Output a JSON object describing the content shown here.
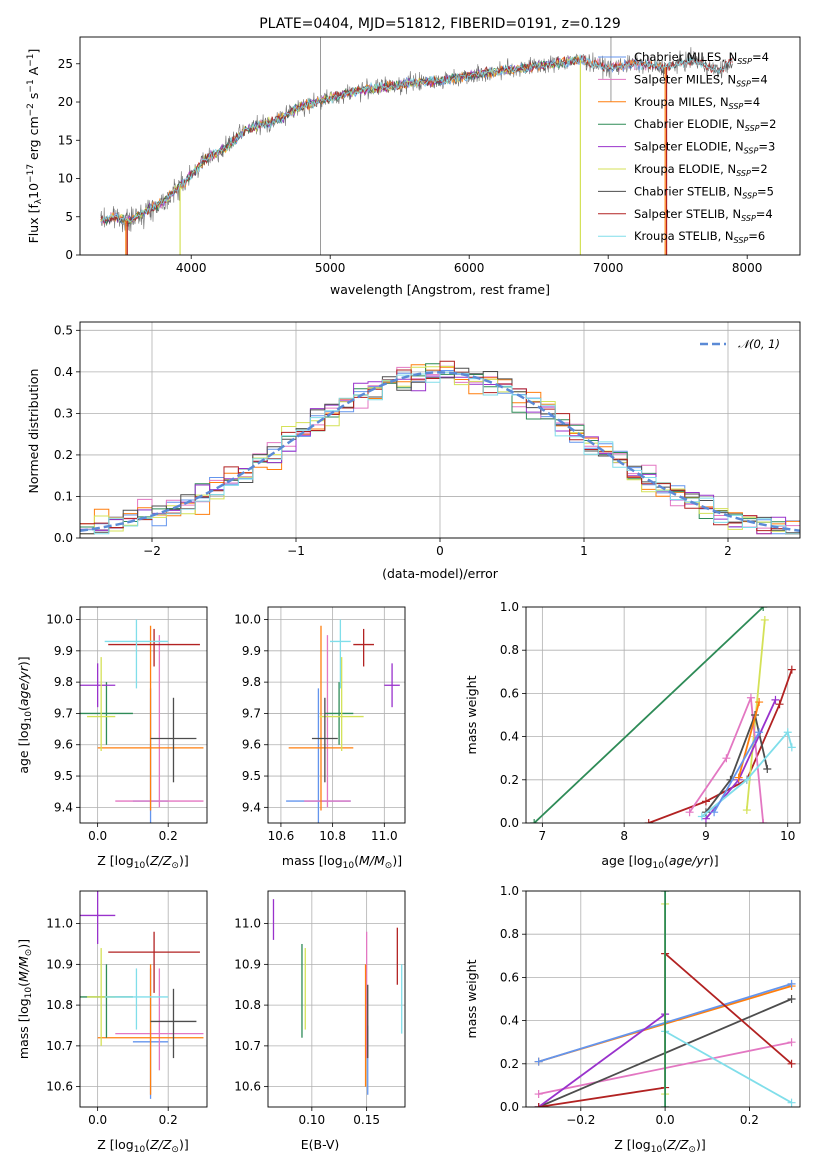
{
  "figure": {
    "title": "PLATE=0404, MJD=51812, FIBERID=0191, z=0.129"
  },
  "colors": {
    "Chabrier MILES": "#6495ed",
    "Salpeter MILES": "#e377c2",
    "Kroupa MILES": "#ff7f0e",
    "Chabrier ELODIE": "#2e8b57",
    "Salpeter ELODIE": "#9932cc",
    "Kroupa ELODIE": "#d4e157",
    "Chabrier STELIB": "#4d4d4d",
    "Salpeter STELIB": "#b22222",
    "Kroupa STELIB": "#80deea"
  },
  "chart_data": [
    {
      "id": "spectrum",
      "type": "line",
      "xlabel": "wavelength [Angstrom, rest frame]",
      "ylabel": "Flux [f_λ 10^-17 erg cm^-2 s^-1 A^-1]",
      "xlim": [
        3200,
        8380
      ],
      "ylim": [
        0,
        28.5
      ],
      "xticks": [
        4000,
        5000,
        6000,
        7000,
        8000
      ],
      "yticks": [
        0,
        5,
        10,
        15,
        20,
        25
      ],
      "grid": false,
      "legend_position": "right",
      "continuum": {
        "x": [
          3350,
          3450,
          3550,
          3650,
          3800,
          3950,
          4100,
          4250,
          4400,
          4600,
          4800,
          5000,
          5200,
          5400,
          5600,
          5800,
          6000,
          6200,
          6400,
          6600,
          6800,
          7000,
          7200,
          7400,
          7600,
          7800,
          7900
        ],
        "y": [
          4.5,
          5.0,
          4.4,
          5.5,
          7.0,
          9.5,
          12.5,
          14.0,
          16.5,
          17.5,
          19.5,
          20.5,
          21.5,
          22.0,
          22.5,
          22.8,
          23.5,
          24.0,
          24.5,
          25.0,
          25.5,
          24.5,
          25.0,
          24.5,
          25.5,
          24.0,
          25.5
        ]
      },
      "legend": [
        "Chabrier MILES, N_SSP=4",
        "Salpeter MILES, N_SSP=4",
        "Kroupa MILES, N_SSP=4",
        "Chabrier ELODIE, N_SSP=2",
        "Salpeter ELODIE, N_SSP=3",
        "Kroupa ELODIE, N_SSP=2",
        "Chabrier STELIB, N_SSP=5",
        "Salpeter STELIB, N_SSP=4",
        "Kroupa STELIB, N_SSP=6"
      ],
      "series": [
        {
          "name": "Chabrier MILES",
          "nssp": 4,
          "xrange": [
            3350,
            7400
          ]
        },
        {
          "name": "Salpeter MILES",
          "nssp": 4,
          "xrange": [
            3350,
            7400
          ]
        },
        {
          "name": "Kroupa MILES",
          "nssp": 4,
          "xrange": [
            3350,
            7400
          ]
        },
        {
          "name": "Chabrier ELODIE",
          "nssp": 2,
          "xrange": [
            3350,
            6800
          ]
        },
        {
          "name": "Salpeter ELODIE",
          "nssp": 3,
          "xrange": [
            3350,
            6800
          ]
        },
        {
          "name": "Kroupa ELODIE",
          "nssp": 2,
          "xrange": [
            3350,
            6800
          ]
        },
        {
          "name": "Chabrier STELIB",
          "nssp": 5,
          "xrange": [
            3350,
            7900
          ]
        },
        {
          "name": "Salpeter STELIB",
          "nssp": 4,
          "xrange": [
            3350,
            7900
          ]
        },
        {
          "name": "Kroupa STELIB",
          "nssp": 6,
          "xrange": [
            3350,
            7900
          ]
        }
      ]
    },
    {
      "id": "residuals",
      "type": "line",
      "xlabel": "(data-model)/error",
      "ylabel": "Normed distribution",
      "xlim": [
        -2.5,
        2.5
      ],
      "ylim": [
        0,
        0.52
      ],
      "xticks": [
        -2,
        -1,
        0,
        1,
        2
      ],
      "yticks": [
        0.0,
        0.1,
        0.2,
        0.3,
        0.4,
        0.5
      ],
      "grid": true,
      "legend_position": "top-right",
      "gaussian_label": "𝒩(0, 1)",
      "bin_width": 0.1
    },
    {
      "id": "age-vs-Z",
      "type": "scatter",
      "xlabel": "Z [log10(Z/Z_⊙)]",
      "ylabel": "age [log10(age/yr)]",
      "xlim": [
        -0.05,
        0.31
      ],
      "ylim": [
        9.35,
        10.04
      ],
      "xticks": [
        0.0,
        0.2
      ],
      "yticks": [
        9.4,
        9.5,
        9.6,
        9.7,
        9.8,
        9.9,
        10.0
      ]
    },
    {
      "id": "age-vs-mass",
      "type": "scatter",
      "xlabel": "mass [log10(M/M_⊙)]",
      "ylabel": "",
      "xlim": [
        10.55,
        11.08
      ],
      "ylim": [
        9.35,
        10.04
      ],
      "xticks": [
        10.6,
        10.8,
        11.0
      ],
      "yticks": [
        9.4,
        9.5,
        9.6,
        9.7,
        9.8,
        9.9,
        10.0
      ]
    },
    {
      "id": "mass-weight-vs-age",
      "type": "line",
      "xlabel": "age [log10(age/yr)]",
      "ylabel": "mass weight",
      "xlim": [
        6.8,
        10.15
      ],
      "ylim": [
        0,
        1.0
      ],
      "xticks": [
        7,
        8,
        9,
        10
      ],
      "yticks": [
        0.0,
        0.2,
        0.4,
        0.6,
        0.8,
        1.0
      ],
      "series": [
        {
          "name": "Chabrier ELODIE",
          "x": [
            6.9,
            9.7
          ],
          "y": [
            0.0,
            1.0
          ]
        },
        {
          "name": "Salpeter STELIB",
          "x": [
            8.3,
            9.0,
            9.5,
            9.9,
            10.05
          ],
          "y": [
            0.0,
            0.1,
            0.2,
            0.55,
            0.71
          ]
        },
        {
          "name": "Kroupa ELODIE",
          "x": [
            9.5,
            9.72
          ],
          "y": [
            0.06,
            0.94
          ]
        },
        {
          "name": "Salpeter MILES",
          "x": [
            8.8,
            9.25,
            9.55,
            9.7
          ],
          "y": [
            0.05,
            0.3,
            0.58,
            0.0
          ]
        },
        {
          "name": "Salpeter ELODIE",
          "x": [
            9.0,
            9.4,
            9.85
          ],
          "y": [
            0.02,
            0.2,
            0.57
          ]
        },
        {
          "name": "Chabrier STELIB",
          "x": [
            9.0,
            9.3,
            9.6,
            9.75
          ],
          "y": [
            0.05,
            0.2,
            0.5,
            0.25
          ]
        },
        {
          "name": "Kroupa STELIB",
          "x": [
            8.95,
            9.5,
            10.0,
            10.05
          ],
          "y": [
            0.03,
            0.2,
            0.42,
            0.35
          ]
        },
        {
          "name": "Kroupa MILES",
          "x": [
            9.4,
            9.65
          ],
          "y": [
            0.21,
            0.56
          ]
        },
        {
          "name": "Chabrier MILES",
          "x": [
            9.1,
            9.65
          ],
          "y": [
            0.05,
            0.42
          ]
        }
      ]
    },
    {
      "id": "mass-vs-Z",
      "type": "scatter",
      "xlabel": "Z [log10(Z/Z_⊙)]",
      "ylabel": "mass [log10(M/M_⊙)]",
      "xlim": [
        -0.05,
        0.31
      ],
      "ylim": [
        10.55,
        11.08
      ],
      "xticks": [
        0.0,
        0.2
      ],
      "yticks": [
        10.6,
        10.7,
        10.8,
        10.9,
        11.0
      ]
    },
    {
      "id": "mass-vs-EBV",
      "type": "scatter",
      "xlabel": "E(B-V)",
      "ylabel": "",
      "xlim": [
        0.06,
        0.185
      ],
      "ylim": [
        10.55,
        11.08
      ],
      "xticks": [
        0.1,
        0.15
      ],
      "yticks": [
        10.6,
        10.7,
        10.8,
        10.9,
        11.0
      ]
    },
    {
      "id": "mass-weight-vs-Z",
      "type": "line",
      "xlabel": "Z [log10(Z/Z_⊙)]",
      "ylabel": "mass weight",
      "xlim": [
        -0.33,
        0.32
      ],
      "ylim": [
        0,
        1.0
      ],
      "xticks": [
        -0.2,
        0.0,
        0.2
      ],
      "yticks": [
        0.0,
        0.2,
        0.4,
        0.6,
        0.8,
        1.0
      ],
      "series": [
        {
          "name": "Kroupa MILES",
          "x": [
            -0.3,
            0.3
          ],
          "y": [
            0.21,
            0.56
          ]
        },
        {
          "name": "Chabrier MILES",
          "x": [
            -0.3,
            0.3
          ],
          "y": [
            0.21,
            0.57
          ]
        },
        {
          "name": "Salpeter MILES",
          "x": [
            -0.3,
            0.3
          ],
          "y": [
            0.06,
            0.3
          ]
        },
        {
          "name": "Chabrier STELIB",
          "x": [
            -0.3,
            0.3
          ],
          "y": [
            0.0,
            0.5
          ]
        },
        {
          "name": "Salpeter ELODIE",
          "x": [
            -0.3,
            0.0
          ],
          "y": [
            0.0,
            0.43
          ]
        },
        {
          "name": "Salpeter STELIB",
          "x": [
            -0.3,
            0.0,
            0.0,
            0.3
          ],
          "y": [
            0.0,
            0.09,
            0.71,
            0.2
          ]
        },
        {
          "name": "Kroupa STELIB",
          "x": [
            0.0,
            0.3
          ],
          "y": [
            0.35,
            0.02
          ]
        },
        {
          "name": "Kroupa ELODIE",
          "x": [
            0.0,
            0.0
          ],
          "y": [
            0.06,
            0.94
          ]
        },
        {
          "name": "Chabrier ELODIE",
          "x": [
            0.0,
            0.0
          ],
          "y": [
            0.0,
            1.0
          ]
        }
      ]
    }
  ],
  "fits": [
    {
      "name": "Chabrier MILES",
      "Z": [
        0.1,
        0.2
      ],
      "age": [
        9.42,
        9.0,
        9.78
      ],
      "mass": [
        10.71,
        10.57,
        10.89
      ],
      "ebv": [
        0.151,
        10.58,
        10.75
      ]
    },
    {
      "name": "Salpeter MILES",
      "Z": [
        0.05,
        0.3
      ],
      "age": [
        9.42,
        9.4,
        9.95
      ],
      "mass": [
        10.73,
        10.64,
        10.89
      ],
      "ebv": [
        0.15,
        10.67,
        10.98
      ]
    },
    {
      "name": "Kroupa MILES",
      "Z": [
        0.0,
        0.3
      ],
      "age": [
        9.59,
        9.39,
        9.98
      ],
      "mass": [
        10.72,
        10.58,
        10.9
      ],
      "ebv": [
        0.149,
        10.6,
        10.9
      ]
    },
    {
      "name": "Chabrier ELODIE",
      "Z": [
        -0.05,
        0.1
      ],
      "age": [
        9.7,
        9.6,
        9.8
      ],
      "mass": [
        10.82,
        10.72,
        10.9
      ],
      "ebv": [
        0.091,
        10.72,
        10.95
      ]
    },
    {
      "name": "Salpeter ELODIE",
      "Z": [
        -0.05,
        0.05
      ],
      "age": [
        9.79,
        9.72,
        9.86
      ],
      "mass": [
        11.02,
        10.95,
        11.08
      ],
      "ebv": [
        0.065,
        10.96,
        11.06
      ]
    },
    {
      "name": "Kroupa ELODIE",
      "Z": [
        -0.03,
        0.05
      ],
      "age": [
        9.69,
        9.58,
        9.88
      ],
      "mass": [
        10.82,
        10.7,
        10.94
      ],
      "ebv": [
        0.094,
        10.74,
        10.94
      ]
    },
    {
      "name": "Chabrier STELIB",
      "Z": [
        0.15,
        0.28
      ],
      "age": [
        9.62,
        9.48,
        9.75
      ],
      "mass": [
        10.76,
        10.67,
        10.84
      ],
      "ebv": [
        0.151,
        10.67,
        10.85
      ]
    },
    {
      "name": "Salpeter STELIB",
      "Z": [
        0.03,
        0.29
      ],
      "age": [
        9.92,
        9.85,
        9.97
      ],
      "mass": [
        10.93,
        10.83,
        10.98
      ],
      "ebv": [
        0.178,
        10.85,
        10.99
      ]
    },
    {
      "name": "Kroupa STELIB",
      "Z": [
        0.02,
        0.2
      ],
      "age": [
        9.93,
        9.78,
        10.0
      ],
      "mass": [
        10.82,
        10.74,
        10.89
      ],
      "ebv": [
        0.182,
        10.73,
        10.9
      ]
    }
  ]
}
